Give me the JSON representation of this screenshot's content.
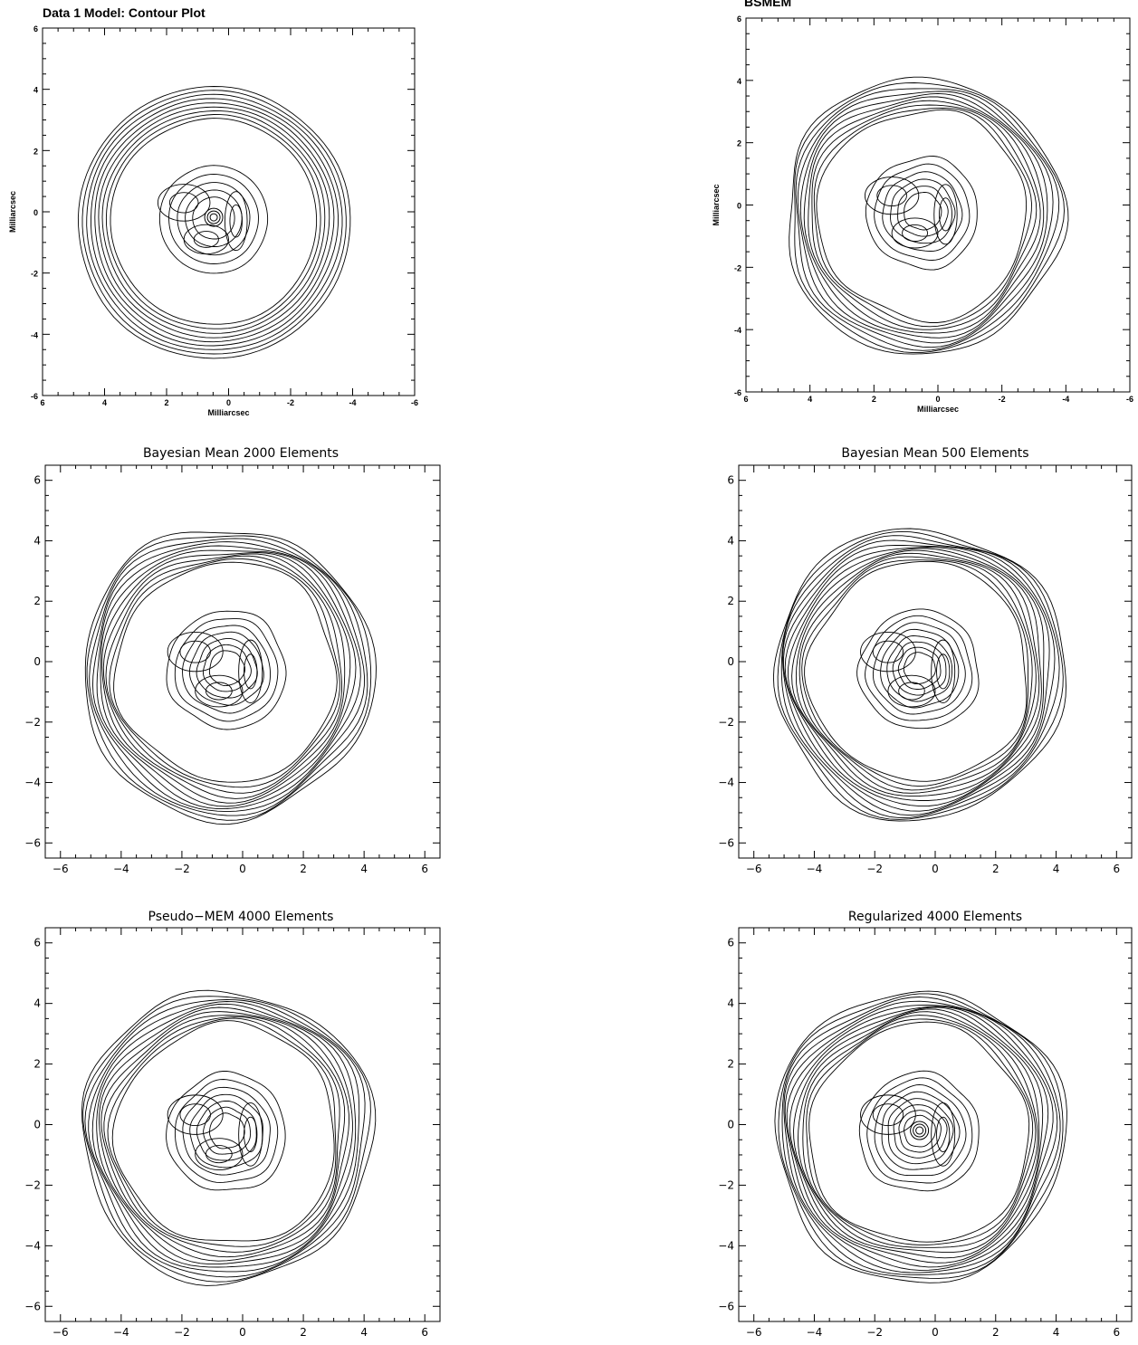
{
  "chart_data": [
    {
      "type": "contour",
      "title": "Data 1 Model: Contour Plot",
      "xlabel": "Milliarcsec",
      "ylabel": "Milliarcsec",
      "xlim": [
        6,
        -6
      ],
      "ylim": [
        -6,
        6
      ],
      "xticks": [
        "6",
        "4",
        "2",
        "0",
        "-2",
        "-4",
        "-6"
      ],
      "yticks": [
        "-6",
        "-4",
        "-2",
        "0",
        "2",
        "4",
        "6"
      ],
      "grid": false,
      "levels": 14,
      "center_ring": true,
      "inner_blobs": 3
    },
    {
      "type": "contour",
      "title": "BSMEM",
      "xlabel": "Milliarcsec",
      "ylabel": "Milliarcsec",
      "xlim": [
        6,
        -6
      ],
      "ylim": [
        -6,
        6
      ],
      "xticks": [
        "6",
        "4",
        "2",
        "0",
        "-2",
        "-4",
        "-6"
      ],
      "yticks": [
        "-6",
        "-4",
        "-2",
        "0",
        "2",
        "4",
        "6"
      ],
      "grid": false,
      "levels": 16,
      "center_ring": false,
      "inner_blobs": 3
    },
    {
      "type": "contour",
      "title": "Bayesian Mean 2000 Elements",
      "xlabel": "",
      "ylabel": "",
      "xlim": [
        -6.5,
        6.5
      ],
      "ylim": [
        -6.5,
        6.5
      ],
      "xticks": [
        "−6",
        "−4",
        "−2",
        "0",
        "2",
        "4",
        "6"
      ],
      "yticks": [
        "−6",
        "−4",
        "−2",
        "0",
        "2",
        "4",
        "6"
      ],
      "grid": false,
      "levels": 18,
      "center_ring": false,
      "inner_blobs": 3
    },
    {
      "type": "contour",
      "title": "Bayesian Mean 500 Elements",
      "xlabel": "",
      "ylabel": "",
      "xlim": [
        -6.5,
        6.5
      ],
      "ylim": [
        -6.5,
        6.5
      ],
      "xticks": [
        "−6",
        "−4",
        "−2",
        "0",
        "2",
        "4",
        "6"
      ],
      "yticks": [
        "−6",
        "−4",
        "−2",
        "0",
        "2",
        "4",
        "6"
      ],
      "grid": false,
      "levels": 20,
      "center_ring": false,
      "inner_blobs": 3
    },
    {
      "type": "contour",
      "title": "Pseudo−MEM 4000 Elements",
      "xlabel": "",
      "ylabel": "",
      "xlim": [
        -6.5,
        6.5
      ],
      "ylim": [
        -6.5,
        6.5
      ],
      "xticks": [
        "−6",
        "−4",
        "−2",
        "0",
        "2",
        "4",
        "6"
      ],
      "yticks": [
        "−6",
        "−4",
        "−2",
        "0",
        "2",
        "4",
        "6"
      ],
      "grid": false,
      "levels": 18,
      "center_ring": false,
      "inner_blobs": 3
    },
    {
      "type": "contour",
      "title": "Regularized 4000 Elements",
      "xlabel": "",
      "ylabel": "",
      "xlim": [
        -6.5,
        6.5
      ],
      "ylim": [
        -6.5,
        6.5
      ],
      "xticks": [
        "−6",
        "−4",
        "−2",
        "0",
        "2",
        "4",
        "6"
      ],
      "yticks": [
        "−6",
        "−4",
        "−2",
        "0",
        "2",
        "4",
        "6"
      ],
      "grid": false,
      "levels": 20,
      "center_ring": true,
      "inner_blobs": 2
    }
  ]
}
